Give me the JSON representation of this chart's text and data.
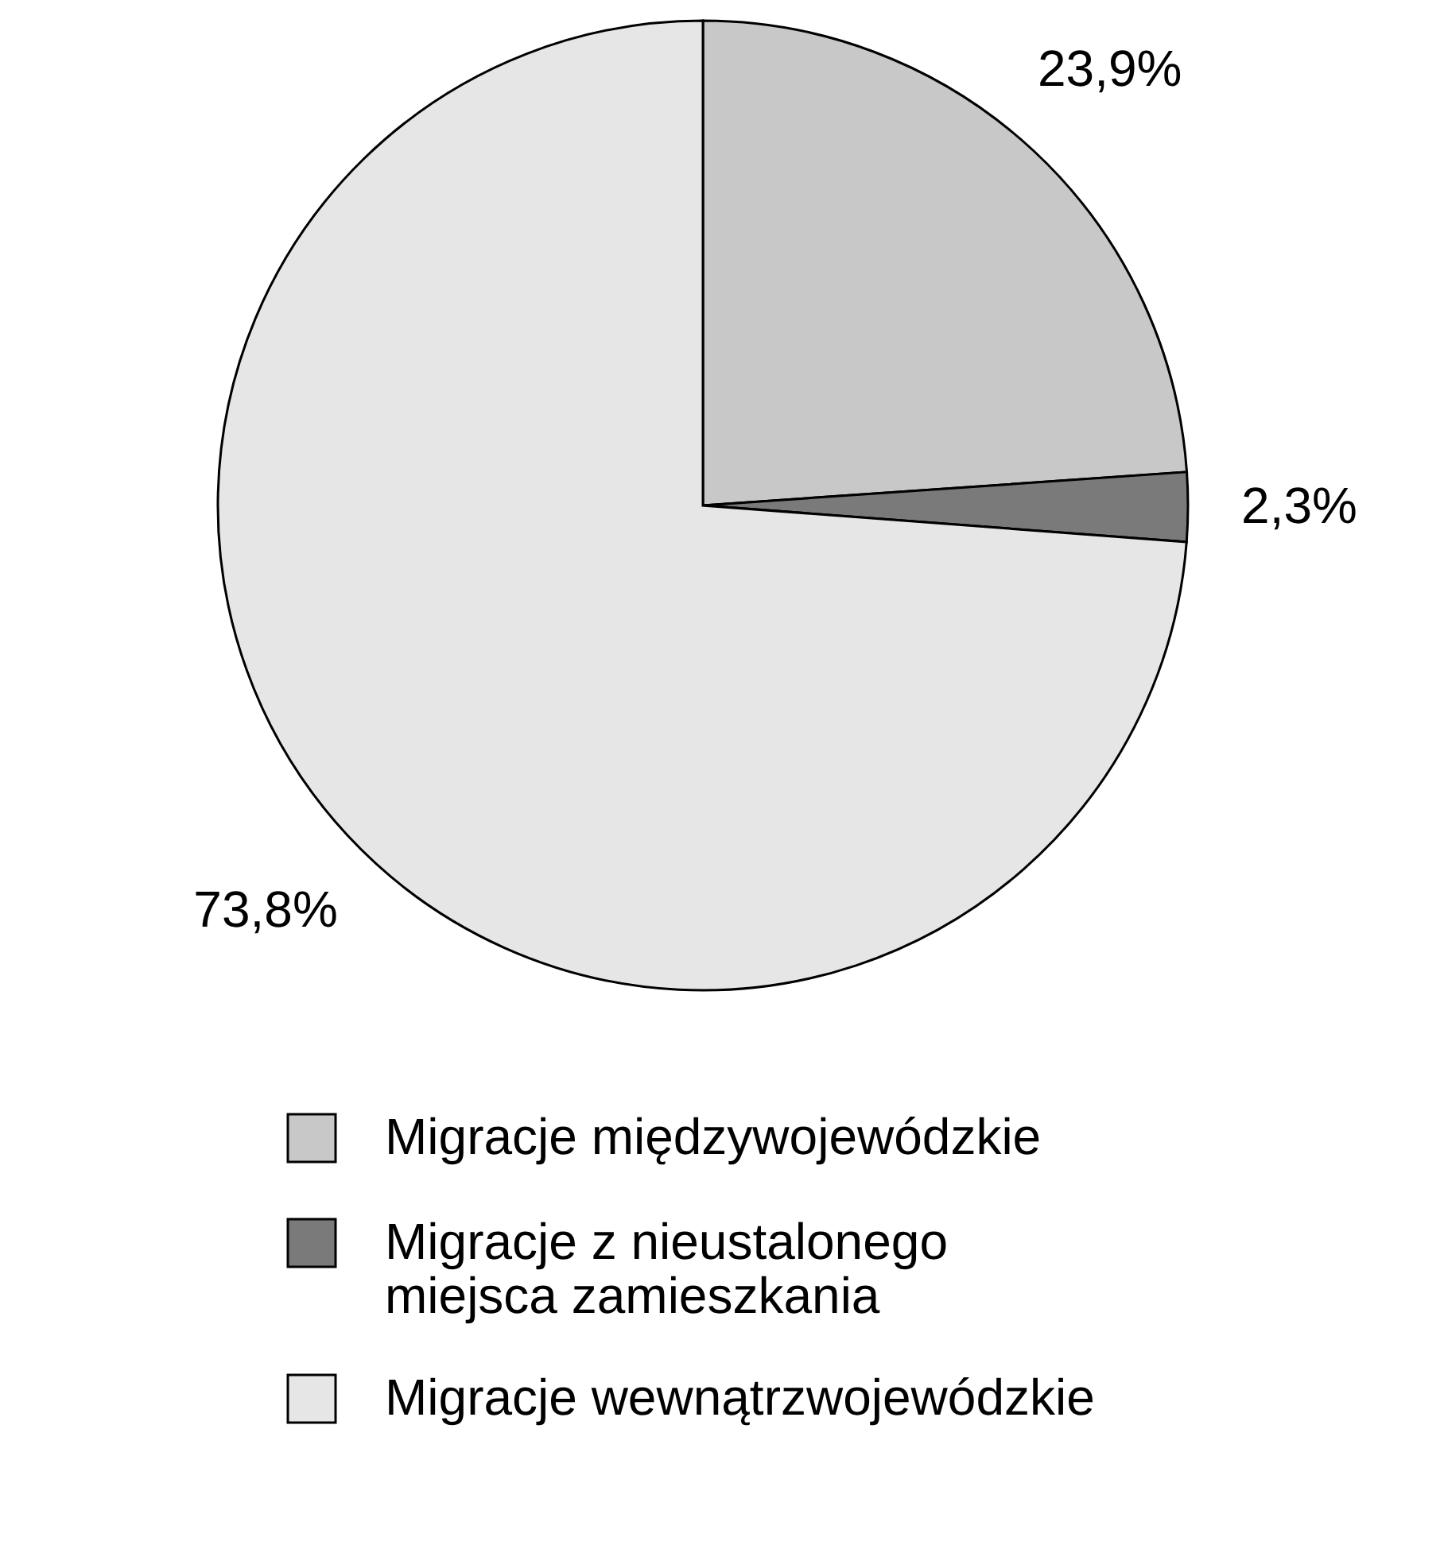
{
  "chart_data": {
    "type": "pie",
    "categories": [
      "Migracje międzywojewódzkie",
      "Migracje z nieustalonego miejsca zamieszkania",
      "Migracje wewnątrzwojewódzkie"
    ],
    "values": [
      23.9,
      2.3,
      73.8
    ],
    "colors": [
      "#c8c8c8",
      "#7a7a7a",
      "#e6e6e6"
    ],
    "value_labels": [
      "23,9%",
      "2,3%",
      "73,8%"
    ],
    "legend": "bottom"
  }
}
